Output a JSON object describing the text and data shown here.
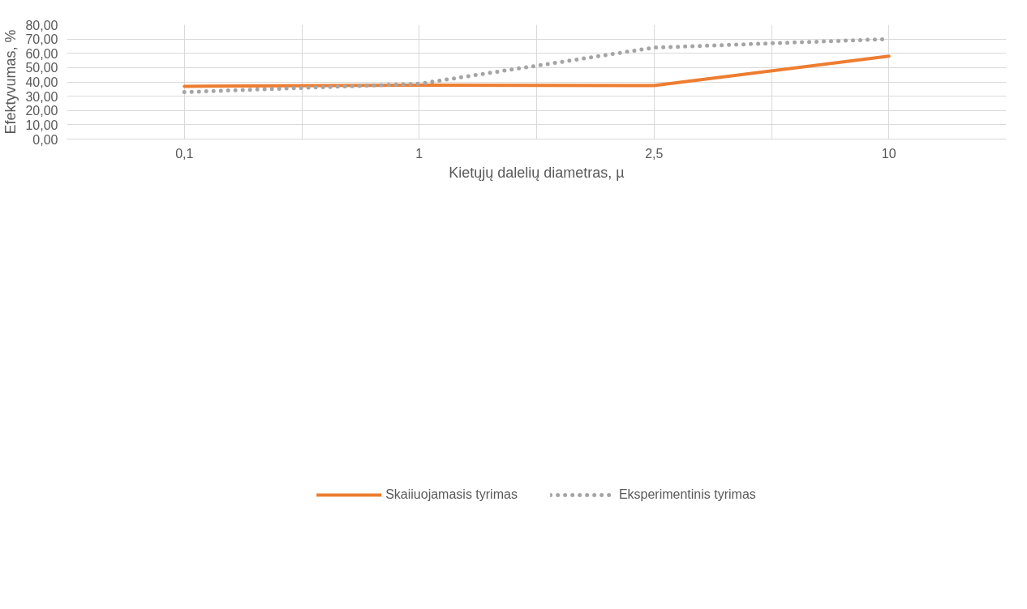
{
  "chart_data": {
    "type": "line",
    "xlabel": "Kietųjų dalelių diametras, µ",
    "ylabel": "Efektyvumas, %",
    "categories": [
      "0,1",
      "1",
      "2,5",
      "10"
    ],
    "series": [
      {
        "name": "Skaiiuojamasis tyrimas",
        "color": "#ed7d31",
        "values": [
          36.9,
          37.7,
          37.4,
          58.0
        ],
        "line_style": "solid"
      },
      {
        "name": "Eksperimentinis tyrimas",
        "color": "#a5a5a5",
        "values": [
          32.9,
          38.7,
          64.0,
          70.0
        ],
        "line_style": "dotted"
      }
    ],
    "ylim": [
      0,
      80
    ],
    "yticks": [
      {
        "value": 0,
        "label": "0,00"
      },
      {
        "value": 10,
        "label": "10,00"
      },
      {
        "value": 20,
        "label": "20,00"
      },
      {
        "value": 30,
        "label": "30,00"
      },
      {
        "value": 40,
        "label": "40,00"
      },
      {
        "value": 50,
        "label": "50,00"
      },
      {
        "value": 60,
        "label": "60,00"
      },
      {
        "value": 70,
        "label": "70,00"
      },
      {
        "value": 80,
        "label": "80,00"
      }
    ],
    "grid": true,
    "legend": "bottom"
  }
}
